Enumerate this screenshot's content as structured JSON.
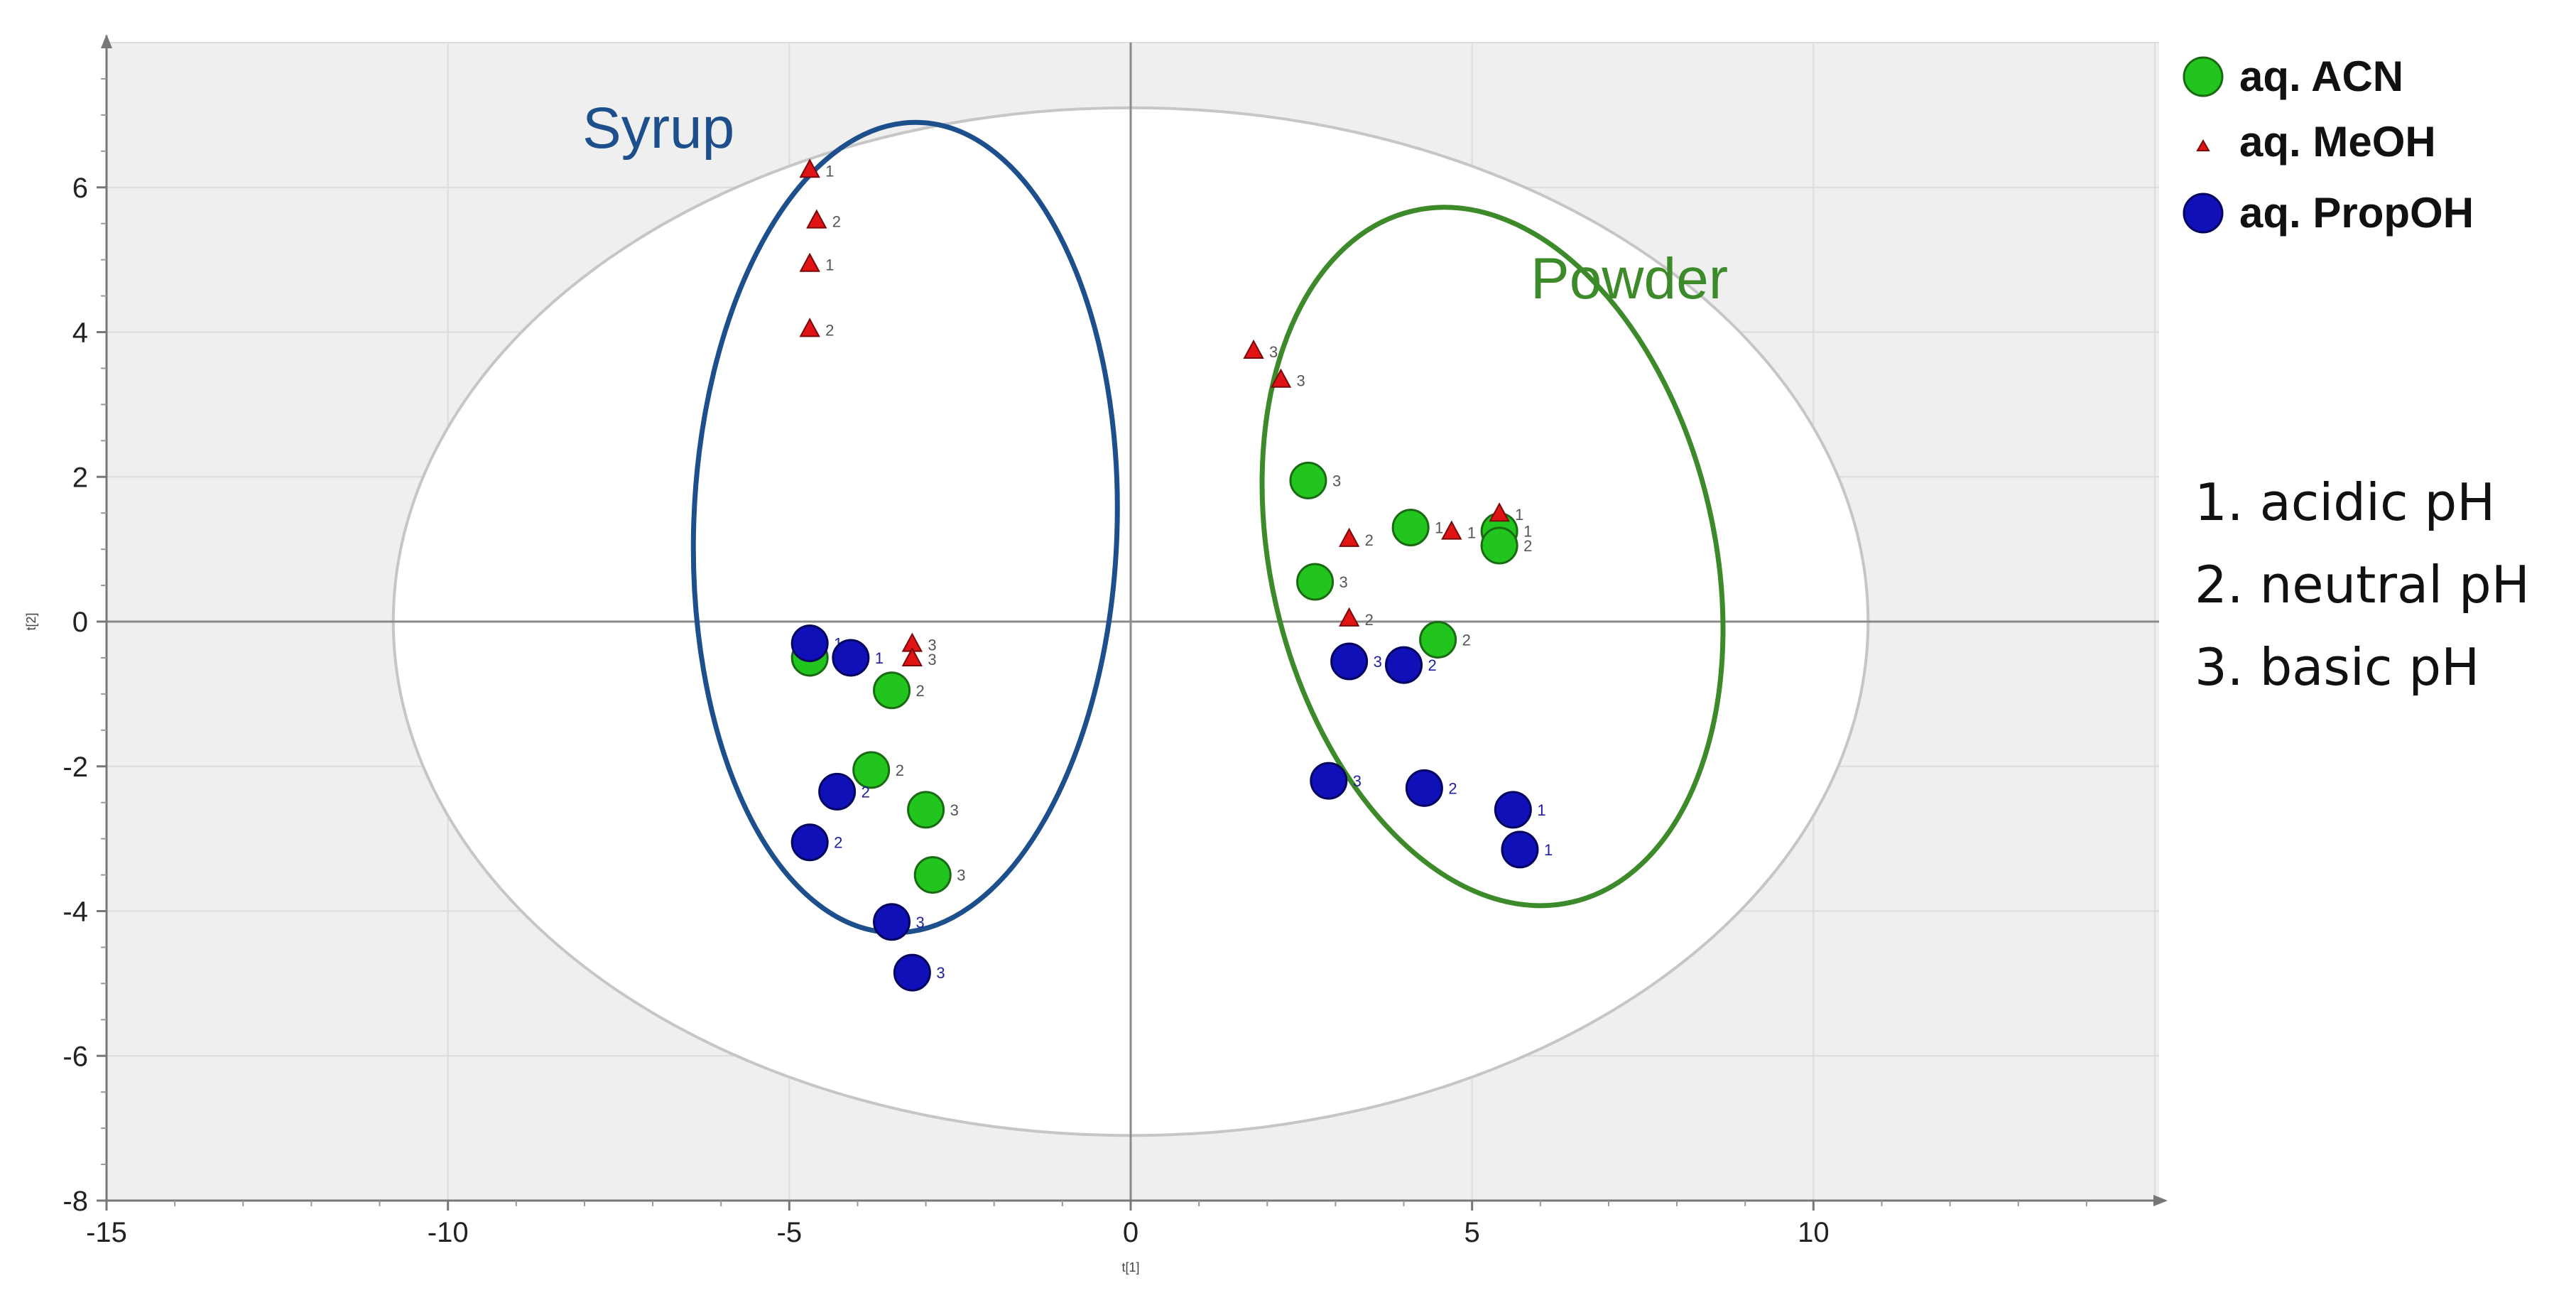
{
  "chart_data": {
    "type": "scatter",
    "title": "",
    "xlabel": "t[1]",
    "ylabel": "t[2]",
    "xlim": [
      -15,
      15
    ],
    "ylim": [
      -8,
      8
    ],
    "xticks": [
      -15,
      -10,
      -5,
      0,
      5,
      10
    ],
    "yticks": [
      -8,
      -6,
      -4,
      -2,
      0,
      2,
      4,
      6
    ],
    "grid": true,
    "legend_position": "top-right",
    "colors": {
      "acn": "#22c51d",
      "meoh": "#e01414",
      "propoh": "#1010b8",
      "syrup": "#1d4f8c",
      "powder": "#3d8a2a",
      "plot_bg": "#efefef",
      "hotelling": "#ffffff"
    },
    "series": [
      {
        "name": "aq. ACN",
        "marker": "circle",
        "points": [
          {
            "x": -4.7,
            "y": -0.5,
            "label": "1"
          },
          {
            "x": -3.5,
            "y": -0.95,
            "label": "2"
          },
          {
            "x": -3.8,
            "y": -2.05,
            "label": "2"
          },
          {
            "x": -3.0,
            "y": -2.6,
            "label": "3"
          },
          {
            "x": -2.9,
            "y": -3.5,
            "label": "3"
          },
          {
            "x": 2.6,
            "y": 1.95,
            "label": "3"
          },
          {
            "x": 2.7,
            "y": 0.55,
            "label": "3"
          },
          {
            "x": 4.1,
            "y": 1.3,
            "label": "1"
          },
          {
            "x": 5.4,
            "y": 1.25,
            "label": "1"
          },
          {
            "x": 5.4,
            "y": 1.05,
            "label": "2"
          },
          {
            "x": 4.5,
            "y": -0.25,
            "label": "2"
          }
        ]
      },
      {
        "name": "aq. MeOH",
        "marker": "triangle",
        "points": [
          {
            "x": -4.7,
            "y": 6.25,
            "label": "1"
          },
          {
            "x": -4.6,
            "y": 5.55,
            "label": "2"
          },
          {
            "x": -4.7,
            "y": 4.95,
            "label": "1"
          },
          {
            "x": -4.7,
            "y": 4.05,
            "label": "2"
          },
          {
            "x": -3.2,
            "y": -0.3,
            "label": "3"
          },
          {
            "x": -3.2,
            "y": -0.5,
            "label": "3"
          },
          {
            "x": 1.8,
            "y": 3.75,
            "label": "3"
          },
          {
            "x": 2.2,
            "y": 3.35,
            "label": "3"
          },
          {
            "x": 3.2,
            "y": 1.15,
            "label": "2"
          },
          {
            "x": 3.2,
            "y": 0.05,
            "label": "2"
          },
          {
            "x": 4.7,
            "y": 1.25,
            "label": "1"
          },
          {
            "x": 5.4,
            "y": 1.5,
            "label": "1"
          }
        ]
      },
      {
        "name": "aq. PropOH",
        "marker": "circle",
        "points": [
          {
            "x": -4.7,
            "y": -0.3,
            "label": "1"
          },
          {
            "x": -4.1,
            "y": -0.5,
            "label": "1"
          },
          {
            "x": -4.3,
            "y": -2.35,
            "label": "2"
          },
          {
            "x": -4.7,
            "y": -3.05,
            "label": "2"
          },
          {
            "x": -3.5,
            "y": -4.15,
            "label": "3"
          },
          {
            "x": -3.2,
            "y": -4.85,
            "label": "3"
          },
          {
            "x": 3.2,
            "y": -0.55,
            "label": "3"
          },
          {
            "x": 4.0,
            "y": -0.6,
            "label": "2"
          },
          {
            "x": 2.9,
            "y": -2.2,
            "label": "3"
          },
          {
            "x": 4.3,
            "y": -2.3,
            "label": "2"
          },
          {
            "x": 5.6,
            "y": -2.6,
            "label": "1"
          },
          {
            "x": 5.7,
            "y": -3.15,
            "label": "1"
          }
        ]
      }
    ],
    "groups": [
      {
        "name": "Syrup",
        "cx": -3.3,
        "cy": 1.3,
        "rx": 3.1,
        "ry": 5.6,
        "angle": 2
      },
      {
        "name": "Powder",
        "cx": 5.3,
        "cy": 0.9,
        "rx": 3.25,
        "ry": 4.9,
        "angle": -13
      }
    ],
    "hotelling_ellipse": {
      "cx": 0,
      "cy": 0,
      "rx": 10.8,
      "ry": 7.1
    },
    "annotations": [
      "1. acidic pH",
      "2. neutral pH",
      "3. basic pH"
    ]
  }
}
